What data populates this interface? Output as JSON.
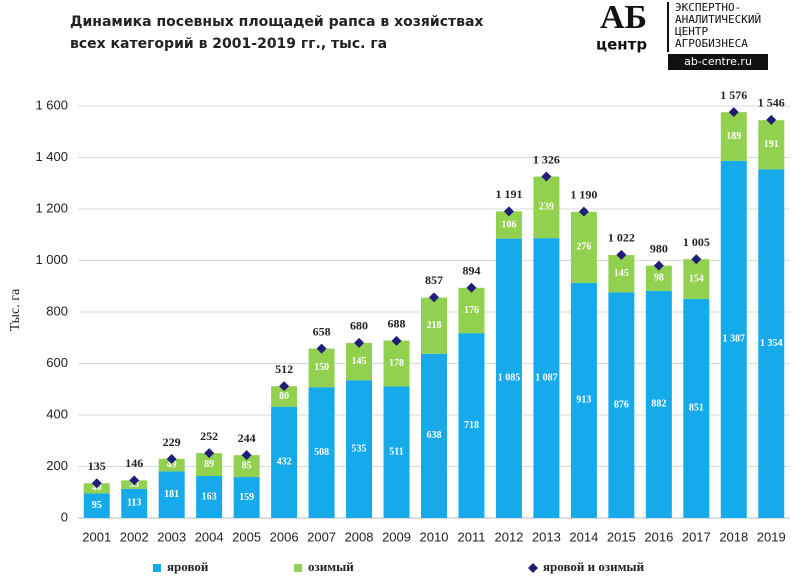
{
  "chart_data": {
    "type": "bar",
    "title": [
      "Динамика посевных площадей рапса в хозяйствах",
      "всех категорий в 2001-2019 гг., тыс. га"
    ],
    "y_label": "Тыс. га",
    "categories": [
      "2001",
      "2002",
      "2003",
      "2004",
      "2005",
      "2006",
      "2007",
      "2008",
      "2009",
      "2010",
      "2011",
      "2012",
      "2013",
      "2014",
      "2015",
      "2016",
      "2017",
      "2018",
      "2019"
    ],
    "series": [
      {
        "name": "яровой",
        "color": "#17aaea",
        "stacked": true,
        "values": [
          95,
          113,
          181,
          163,
          159,
          432,
          508,
          535,
          511,
          638,
          718,
          1085,
          1087,
          913,
          876,
          882,
          851,
          1387,
          1354
        ],
        "value_labels": [
          "95",
          "113",
          "181",
          "163",
          "159",
          "432",
          "508",
          "535",
          "511",
          "638",
          "718",
          "1 085",
          "1 087",
          "913",
          "876",
          "882",
          "851",
          "1 387",
          "1 354"
        ]
      },
      {
        "name": "озимый",
        "color": "#92d050",
        "stacked": true,
        "values": [
          40,
          33,
          49,
          89,
          85,
          80,
          150,
          145,
          178,
          218,
          176,
          106,
          239,
          276,
          145,
          98,
          154,
          189,
          191
        ],
        "value_labels": [
          "40",
          "33",
          "49",
          "89",
          "85",
          "80",
          "150",
          "145",
          "178",
          "218",
          "176",
          "106",
          "239",
          "276",
          "145",
          "98",
          "154",
          "189",
          "191"
        ]
      },
      {
        "name": "яровой и озимый",
        "color": "#1f1f7a",
        "marker": "diamond",
        "values": [
          135,
          146,
          229,
          252,
          244,
          512,
          658,
          680,
          688,
          857,
          894,
          1191,
          1326,
          1190,
          1022,
          980,
          1005,
          1576,
          1546
        ],
        "value_labels": [
          "135",
          "146",
          "229",
          "252",
          "244",
          "512",
          "658",
          "680",
          "688",
          "857",
          "894",
          "1 191",
          "1 326",
          "1 190",
          "1 022",
          "980",
          "1 005",
          "1 576",
          "1 546"
        ]
      }
    ],
    "ylim": [
      0,
      1600
    ],
    "yticks": [
      0,
      200,
      400,
      600,
      800,
      {
        "value": 1000,
        "label": "1 000"
      },
      {
        "value": 1200,
        "label": "1 200"
      },
      {
        "value": 1400,
        "label": "1 400"
      },
      {
        "value": 1600,
        "label": "1 600"
      }
    ],
    "grid": true,
    "legend": "bottom"
  },
  "logo": {
    "mark": "АБ",
    "word": "центр",
    "lines": [
      "ЭКСПЕРТНО-",
      "АНАЛИТИЧЕСКИЙ",
      "ЦЕНТР",
      "АГРОБИЗНЕСА"
    ],
    "url": "ab-centre.ru"
  }
}
